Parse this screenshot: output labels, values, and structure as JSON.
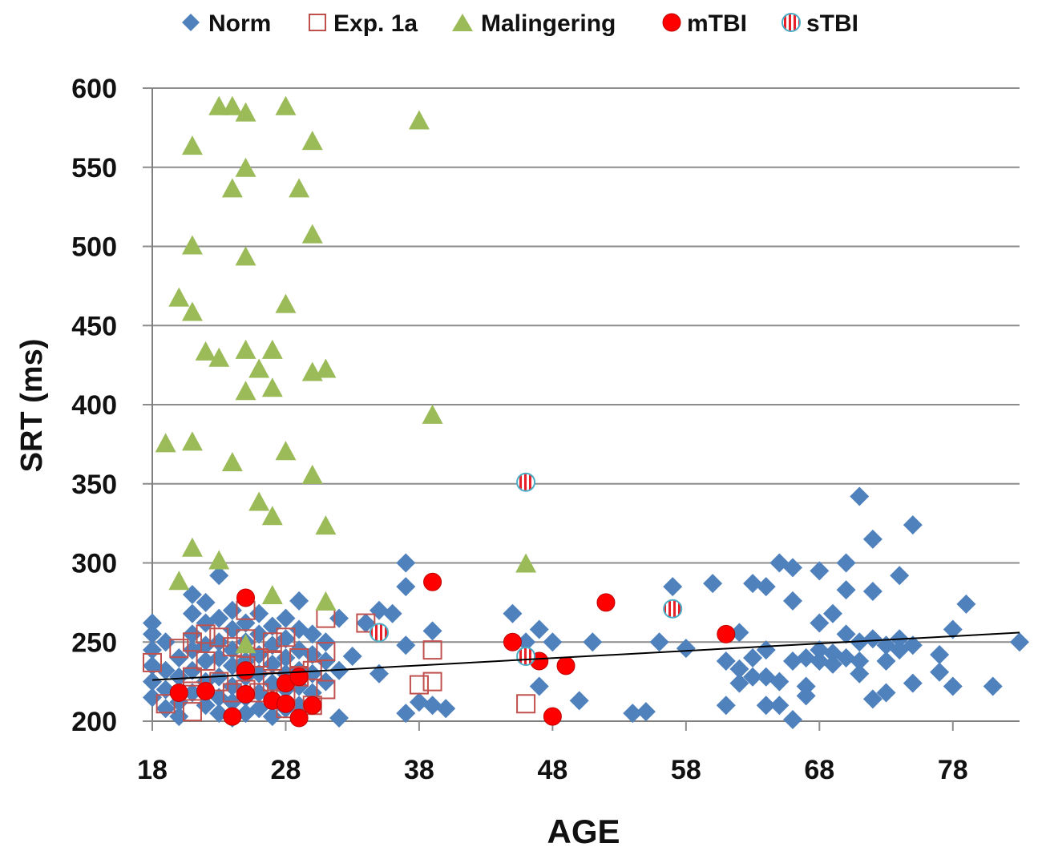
{
  "chart_data": {
    "type": "scatter",
    "title": "",
    "xlabel": "AGE",
    "ylabel": "SRT (ms)",
    "xlim": [
      18,
      83
    ],
    "ylim": [
      200,
      600
    ],
    "xticks": [
      18,
      28,
      38,
      48,
      58,
      68,
      78
    ],
    "yticks": [
      200,
      250,
      300,
      350,
      400,
      450,
      500,
      550,
      600
    ],
    "grid": "horizontal",
    "legend_position": "top",
    "colors": {
      "norm": "#4f81bd",
      "exp": "#c0504d",
      "malingering": "#9bbb59",
      "mtbi": "#ff0000",
      "stbi_stripe": "#e8202a",
      "stbi_ring": "#4bacc6",
      "gridline": "#8c8c8c",
      "trendline": "#000000"
    },
    "trendline": {
      "x": [
        18,
        83
      ],
      "y": [
        226,
        256
      ],
      "label": ""
    },
    "series": [
      {
        "name": "Norm",
        "key": "norm",
        "marker": "diamond",
        "points": [
          [
            18,
            262
          ],
          [
            18,
            255
          ],
          [
            18,
            245
          ],
          [
            18,
            235
          ],
          [
            18,
            225
          ],
          [
            18,
            215
          ],
          [
            19,
            250
          ],
          [
            19,
            232
          ],
          [
            19,
            220
          ],
          [
            19,
            208
          ],
          [
            20,
            240
          ],
          [
            20,
            228
          ],
          [
            20,
            212
          ],
          [
            20,
            203
          ],
          [
            21,
            280
          ],
          [
            21,
            268
          ],
          [
            21,
            255
          ],
          [
            21,
            245
          ],
          [
            21,
            232
          ],
          [
            21,
            218
          ],
          [
            22,
            275
          ],
          [
            22,
            262
          ],
          [
            22,
            248
          ],
          [
            22,
            238
          ],
          [
            22,
            225
          ],
          [
            22,
            210
          ],
          [
            23,
            292
          ],
          [
            23,
            265
          ],
          [
            23,
            250
          ],
          [
            23,
            240
          ],
          [
            23,
            228
          ],
          [
            23,
            215
          ],
          [
            23,
            205
          ],
          [
            24,
            270
          ],
          [
            24,
            258
          ],
          [
            24,
            245
          ],
          [
            24,
            235
          ],
          [
            24,
            222
          ],
          [
            24,
            212
          ],
          [
            24,
            202
          ],
          [
            25,
            262
          ],
          [
            25,
            250
          ],
          [
            25,
            238
          ],
          [
            25,
            228
          ],
          [
            25,
            215
          ],
          [
            25,
            205
          ],
          [
            26,
            268
          ],
          [
            26,
            255
          ],
          [
            26,
            242
          ],
          [
            26,
            230
          ],
          [
            26,
            218
          ],
          [
            26,
            208
          ],
          [
            27,
            260
          ],
          [
            27,
            248
          ],
          [
            27,
            236
          ],
          [
            27,
            224
          ],
          [
            27,
            214
          ],
          [
            27,
            203
          ],
          [
            28,
            265
          ],
          [
            28,
            252
          ],
          [
            28,
            240
          ],
          [
            28,
            230
          ],
          [
            28,
            220
          ],
          [
            28,
            208
          ],
          [
            29,
            276
          ],
          [
            29,
            258
          ],
          [
            29,
            245
          ],
          [
            29,
            232
          ],
          [
            29,
            222
          ],
          [
            29,
            210
          ],
          [
            30,
            255
          ],
          [
            30,
            242
          ],
          [
            30,
            230
          ],
          [
            30,
            218
          ],
          [
            31,
            250
          ],
          [
            31,
            238
          ],
          [
            31,
            225
          ],
          [
            32,
            265
          ],
          [
            32,
            232
          ],
          [
            32,
            202
          ],
          [
            33,
            241
          ],
          [
            34,
            262
          ],
          [
            35,
            270
          ],
          [
            35,
            230
          ],
          [
            36,
            268
          ],
          [
            37,
            300
          ],
          [
            37,
            285
          ],
          [
            37,
            248
          ],
          [
            37,
            205
          ],
          [
            38,
            212
          ],
          [
            39,
            257
          ],
          [
            39,
            210
          ],
          [
            40,
            208
          ],
          [
            45,
            268
          ],
          [
            46,
            250
          ],
          [
            47,
            258
          ],
          [
            47,
            222
          ],
          [
            48,
            250
          ],
          [
            50,
            213
          ],
          [
            51,
            250
          ],
          [
            54,
            205
          ],
          [
            55,
            206
          ],
          [
            56,
            250
          ],
          [
            57,
            285
          ],
          [
            58,
            246
          ],
          [
            60,
            287
          ],
          [
            61,
            238
          ],
          [
            61,
            210
          ],
          [
            62,
            256
          ],
          [
            62,
            233
          ],
          [
            62,
            224
          ],
          [
            63,
            287
          ],
          [
            63,
            240
          ],
          [
            63,
            228
          ],
          [
            64,
            285
          ],
          [
            64,
            245
          ],
          [
            64,
            228
          ],
          [
            64,
            210
          ],
          [
            65,
            300
          ],
          [
            65,
            225
          ],
          [
            65,
            210
          ],
          [
            66,
            297
          ],
          [
            66,
            276
          ],
          [
            66,
            238
          ],
          [
            66,
            201
          ],
          [
            67,
            240
          ],
          [
            67,
            222
          ],
          [
            67,
            216
          ],
          [
            68,
            295
          ],
          [
            68,
            262
          ],
          [
            68,
            245
          ],
          [
            68,
            238
          ],
          [
            69,
            268
          ],
          [
            69,
            243
          ],
          [
            69,
            236
          ],
          [
            70,
            300
          ],
          [
            70,
            283
          ],
          [
            70,
            255
          ],
          [
            70,
            240
          ],
          [
            71,
            342
          ],
          [
            71,
            250
          ],
          [
            71,
            238
          ],
          [
            71,
            230
          ],
          [
            72,
            315
          ],
          [
            72,
            282
          ],
          [
            72,
            252
          ],
          [
            72,
            214
          ],
          [
            73,
            248
          ],
          [
            73,
            238
          ],
          [
            73,
            218
          ],
          [
            74,
            292
          ],
          [
            74,
            252
          ],
          [
            74,
            245
          ],
          [
            75,
            324
          ],
          [
            75,
            248
          ],
          [
            75,
            224
          ],
          [
            77,
            242
          ],
          [
            77,
            231
          ],
          [
            78,
            222
          ],
          [
            78,
            258
          ],
          [
            79,
            274
          ],
          [
            81,
            222
          ],
          [
            83,
            250
          ]
        ]
      },
      {
        "name": "Exp. 1a",
        "key": "exp",
        "marker": "open-square",
        "points": [
          [
            18,
            237
          ],
          [
            19,
            211
          ],
          [
            20,
            246
          ],
          [
            21,
            250
          ],
          [
            21,
            228
          ],
          [
            21,
            219
          ],
          [
            21,
            206
          ],
          [
            22,
            255
          ],
          [
            22,
            238
          ],
          [
            23,
            253
          ],
          [
            23,
            225
          ],
          [
            24,
            247
          ],
          [
            24,
            218
          ],
          [
            25,
            270
          ],
          [
            25,
            252
          ],
          [
            25,
            235
          ],
          [
            25,
            220
          ],
          [
            26,
            240
          ],
          [
            26,
            218
          ],
          [
            27,
            250
          ],
          [
            27,
            238
          ],
          [
            27,
            225
          ],
          [
            28,
            253
          ],
          [
            28,
            215
          ],
          [
            28,
            208
          ],
          [
            29,
            240
          ],
          [
            29,
            228
          ],
          [
            30,
            232
          ],
          [
            30,
            210
          ],
          [
            31,
            265
          ],
          [
            31,
            244
          ],
          [
            31,
            220
          ],
          [
            34,
            262
          ],
          [
            38,
            223
          ],
          [
            39,
            245
          ],
          [
            39,
            225
          ],
          [
            46,
            211
          ]
        ]
      },
      {
        "name": "Malingering",
        "key": "malingering",
        "marker": "triangle",
        "points": [
          [
            19,
            375
          ],
          [
            20,
            467
          ],
          [
            20,
            288
          ],
          [
            21,
            563
          ],
          [
            21,
            500
          ],
          [
            21,
            458
          ],
          [
            21,
            376
          ],
          [
            21,
            309
          ],
          [
            22,
            433
          ],
          [
            23,
            588
          ],
          [
            23,
            429
          ],
          [
            23,
            301
          ],
          [
            24,
            588
          ],
          [
            24,
            536
          ],
          [
            24,
            363
          ],
          [
            25,
            584
          ],
          [
            25,
            549
          ],
          [
            25,
            493
          ],
          [
            25,
            434
          ],
          [
            25,
            408
          ],
          [
            25,
            248
          ],
          [
            26,
            422
          ],
          [
            26,
            338
          ],
          [
            27,
            434
          ],
          [
            27,
            410
          ],
          [
            27,
            329
          ],
          [
            27,
            279
          ],
          [
            28,
            588
          ],
          [
            28,
            463
          ],
          [
            28,
            370
          ],
          [
            29,
            536
          ],
          [
            30,
            566
          ],
          [
            30,
            507
          ],
          [
            30,
            420
          ],
          [
            30,
            355
          ],
          [
            31,
            422
          ],
          [
            31,
            323
          ],
          [
            31,
            275
          ],
          [
            38,
            579
          ],
          [
            39,
            393
          ],
          [
            46,
            299
          ]
        ]
      },
      {
        "name": "mTBI",
        "key": "mtbi",
        "marker": "filled-circle",
        "points": [
          [
            20,
            218
          ],
          [
            22,
            219
          ],
          [
            24,
            203
          ],
          [
            25,
            278
          ],
          [
            25,
            232
          ],
          [
            25,
            217
          ],
          [
            27,
            213
          ],
          [
            28,
            224
          ],
          [
            28,
            211
          ],
          [
            29,
            228
          ],
          [
            29,
            202
          ],
          [
            30,
            210
          ],
          [
            39,
            288
          ],
          [
            45,
            250
          ],
          [
            47,
            238
          ],
          [
            48,
            203
          ],
          [
            49,
            235
          ],
          [
            52,
            275
          ],
          [
            61,
            255
          ]
        ]
      },
      {
        "name": "sTBI",
        "key": "stbi",
        "marker": "striped-circle",
        "points": [
          [
            35,
            256
          ],
          [
            46,
            351
          ],
          [
            46,
            241
          ],
          [
            57,
            271
          ]
        ]
      }
    ]
  }
}
